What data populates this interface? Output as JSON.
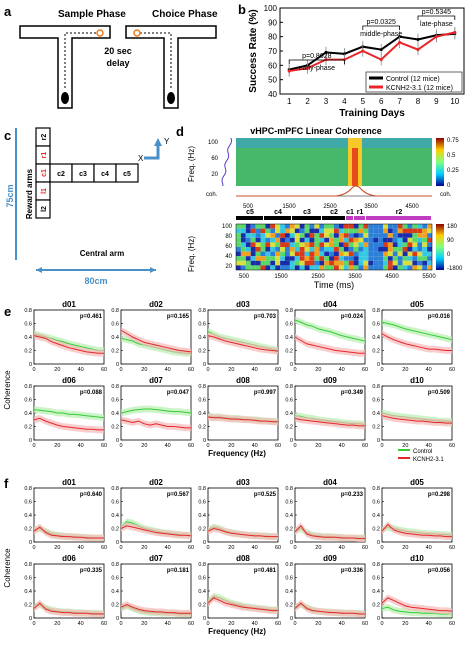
{
  "panel_labels": {
    "a": "a",
    "b": "b",
    "c": "c",
    "d": "d",
    "e": "e",
    "f": "f"
  },
  "panel_a": {
    "sample_phase": "Sample Phase",
    "choice_phase": "Choice Phase",
    "delay": "20 sec\ndelay"
  },
  "panel_c": {
    "reward_arms": "Reward arms",
    "central_arm": "Central arm",
    "dim_vertical": "75cm",
    "dim_horizontal": "80cm",
    "cells_vertical": [
      "r2",
      "r1",
      "c1",
      "l1",
      "l2"
    ],
    "cells_horizontal": [
      "c2",
      "c3",
      "c4",
      "c5"
    ],
    "axis_x": "X",
    "axis_y": "Y"
  },
  "panel_d": {
    "title": "vHPC-mPFC Linear Coherence",
    "ylabel_top": "Freq. (Hz)",
    "ylabel_bottom": "Freq. (Hz)",
    "coh_label": "coh.",
    "xlabel": "Time (ms)",
    "top_yticks": [
      "100",
      "60",
      "20"
    ],
    "colorbar_top": [
      "0.75",
      "0.5",
      "0.25",
      "0"
    ],
    "colorbar_bottom": [
      "180",
      "90",
      "0",
      "-1800"
    ],
    "xticks": [
      "500",
      "1500",
      "2500",
      "3500",
      "4500"
    ],
    "bottom_xticks": [
      "500",
      "1500",
      "2500",
      "3500",
      "4500",
      "5500"
    ],
    "segments": [
      "c5",
      "c4",
      "c3",
      "c2",
      "c1",
      "r1",
      "r2"
    ],
    "bottom_yticks": [
      "100",
      "80",
      "60",
      "40",
      "20"
    ]
  },
  "panel_b": {
    "chart_data": {
      "type": "line",
      "xlabel": "Training Days",
      "ylabel": "Success Rate (%)",
      "x": [
        1,
        2,
        3,
        4,
        5,
        6,
        7,
        8,
        9,
        10
      ],
      "ylim": [
        40,
        100
      ],
      "yticks": [
        40,
        50,
        60,
        70,
        80,
        90,
        100
      ],
      "series": [
        {
          "name": "Control (12 mice)",
          "color": "#000000",
          "values": [
            57,
            60,
            69,
            68,
            73,
            71,
            80,
            78,
            81,
            82
          ]
        },
        {
          "name": "KCNH2-3.1 (12 mice)",
          "color": "#e8262a",
          "values": [
            56,
            58,
            64,
            64,
            70,
            64,
            76,
            71,
            80,
            83
          ]
        }
      ],
      "annotations": [
        {
          "text": "p=0.8628",
          "sub": "early-phase",
          "x_from": 1,
          "x_to": 4
        },
        {
          "text": "p=0.0325",
          "sub": "middle-phase",
          "x_from": 5,
          "x_to": 7
        },
        {
          "text": "p=0.5345",
          "sub": "late-phase",
          "x_from": 8,
          "x_to": 10
        }
      ]
    }
  },
  "coherence_common": {
    "ylabel": "Coherence",
    "xlabel": "Frequency (Hz)",
    "xticks": [
      0,
      20,
      40,
      60
    ],
    "yticks": [
      0,
      0.2,
      0.4,
      0.6,
      0.8
    ],
    "legend": [
      {
        "name": "Control",
        "color": "#33cc33"
      },
      {
        "name": "KCNH2-3.1",
        "color": "#e8262a"
      }
    ]
  },
  "panel_e": {
    "chart_data": [
      {
        "title": "d01",
        "p": "p=0.461",
        "control": [
          0.45,
          0.42,
          0.4,
          0.38,
          0.35,
          0.33,
          0.3,
          0.28,
          0.26,
          0.24,
          0.22,
          0.2,
          0.2
        ],
        "kcnh": [
          0.42,
          0.4,
          0.38,
          0.33,
          0.3,
          0.27,
          0.24,
          0.22,
          0.2,
          0.18,
          0.17,
          0.16,
          0.16
        ]
      },
      {
        "title": "d02",
        "p": "p=0.165",
        "control": [
          0.38,
          0.36,
          0.34,
          0.3,
          0.28,
          0.26,
          0.24,
          0.22,
          0.2,
          0.18,
          0.17,
          0.16,
          0.16
        ],
        "kcnh": [
          0.5,
          0.45,
          0.4,
          0.36,
          0.32,
          0.3,
          0.28,
          0.26,
          0.24,
          0.22,
          0.2,
          0.19,
          0.18
        ]
      },
      {
        "title": "d03",
        "p": "p=0.703",
        "control": [
          0.48,
          0.44,
          0.4,
          0.38,
          0.36,
          0.34,
          0.32,
          0.3,
          0.28,
          0.26,
          0.24,
          0.22,
          0.2
        ],
        "kcnh": [
          0.42,
          0.4,
          0.37,
          0.34,
          0.32,
          0.3,
          0.28,
          0.26,
          0.24,
          0.22,
          0.21,
          0.2,
          0.19
        ]
      },
      {
        "title": "d04",
        "p": "p=0.024",
        "control": [
          0.65,
          0.62,
          0.58,
          0.56,
          0.52,
          0.5,
          0.48,
          0.45,
          0.42,
          0.4,
          0.38,
          0.36,
          0.34
        ],
        "kcnh": [
          0.4,
          0.35,
          0.3,
          0.28,
          0.26,
          0.24,
          0.22,
          0.2,
          0.19,
          0.18,
          0.17,
          0.16,
          0.16
        ]
      },
      {
        "title": "d05",
        "p": "p=0.016",
        "control": [
          0.62,
          0.6,
          0.58,
          0.55,
          0.52,
          0.5,
          0.48,
          0.46,
          0.44,
          0.42,
          0.4,
          0.38,
          0.36
        ],
        "kcnh": [
          0.45,
          0.4,
          0.36,
          0.33,
          0.3,
          0.28,
          0.26,
          0.24,
          0.22,
          0.22,
          0.21,
          0.2,
          0.2
        ]
      },
      {
        "title": "d06",
        "p": "p=0.088",
        "control": [
          0.45,
          0.44,
          0.43,
          0.42,
          0.4,
          0.4,
          0.38,
          0.38,
          0.37,
          0.36,
          0.35,
          0.34,
          0.33
        ],
        "kcnh": [
          0.3,
          0.32,
          0.28,
          0.25,
          0.22,
          0.2,
          0.19,
          0.18,
          0.17,
          0.16,
          0.16,
          0.15,
          0.15
        ]
      },
      {
        "title": "d07",
        "p": "p=0.047",
        "control": [
          0.4,
          0.42,
          0.44,
          0.45,
          0.46,
          0.46,
          0.45,
          0.44,
          0.43,
          0.42,
          0.42,
          0.41,
          0.4
        ],
        "kcnh": [
          0.3,
          0.28,
          0.26,
          0.28,
          0.24,
          0.22,
          0.24,
          0.22,
          0.2,
          0.2,
          0.19,
          0.18,
          0.18
        ]
      },
      {
        "title": "d08",
        "p": "p=0.997",
        "control": [
          0.35,
          0.34,
          0.34,
          0.33,
          0.32,
          0.32,
          0.31,
          0.3,
          0.3,
          0.29,
          0.28,
          0.28,
          0.27
        ],
        "kcnh": [
          0.34,
          0.33,
          0.33,
          0.32,
          0.31,
          0.31,
          0.3,
          0.3,
          0.29,
          0.28,
          0.28,
          0.27,
          0.27
        ]
      },
      {
        "title": "d09",
        "p": "p=0.349",
        "control": [
          0.36,
          0.35,
          0.33,
          0.32,
          0.3,
          0.29,
          0.28,
          0.27,
          0.26,
          0.25,
          0.24,
          0.24,
          0.23
        ],
        "kcnh": [
          0.32,
          0.3,
          0.29,
          0.28,
          0.27,
          0.26,
          0.25,
          0.24,
          0.23,
          0.22,
          0.22,
          0.21,
          0.21
        ]
      },
      {
        "title": "d10",
        "p": "p=0.509",
        "control": [
          0.4,
          0.38,
          0.36,
          0.35,
          0.34,
          0.33,
          0.32,
          0.31,
          0.3,
          0.29,
          0.28,
          0.28,
          0.27
        ],
        "kcnh": [
          0.36,
          0.34,
          0.32,
          0.31,
          0.3,
          0.29,
          0.28,
          0.28,
          0.27,
          0.26,
          0.26,
          0.25,
          0.25
        ]
      }
    ]
  },
  "panel_f": {
    "chart_data": [
      {
        "title": "d01",
        "p": "p=0.640",
        "control": [
          0.18,
          0.2,
          0.16,
          0.12,
          0.1,
          0.09,
          0.08,
          0.08,
          0.07,
          0.07,
          0.06,
          0.06,
          0.06
        ],
        "kcnh": [
          0.16,
          0.22,
          0.14,
          0.1,
          0.09,
          0.08,
          0.08,
          0.07,
          0.07,
          0.06,
          0.06,
          0.06,
          0.06
        ]
      },
      {
        "title": "d02",
        "p": "p=0.567",
        "control": [
          0.22,
          0.3,
          0.28,
          0.24,
          0.2,
          0.18,
          0.16,
          0.14,
          0.13,
          0.12,
          0.11,
          0.1,
          0.1
        ],
        "kcnh": [
          0.2,
          0.24,
          0.22,
          0.2,
          0.18,
          0.16,
          0.14,
          0.13,
          0.12,
          0.11,
          0.1,
          0.1,
          0.09
        ]
      },
      {
        "title": "d03",
        "p": "p=0.525",
        "control": [
          0.18,
          0.22,
          0.2,
          0.16,
          0.14,
          0.12,
          0.11,
          0.1,
          0.1,
          0.09,
          0.09,
          0.08,
          0.08
        ],
        "kcnh": [
          0.16,
          0.2,
          0.18,
          0.15,
          0.13,
          0.12,
          0.11,
          0.1,
          0.09,
          0.09,
          0.08,
          0.08,
          0.08
        ]
      },
      {
        "title": "d04",
        "p": "p=0.233",
        "control": [
          0.16,
          0.2,
          0.14,
          0.1,
          0.09,
          0.08,
          0.08,
          0.07,
          0.07,
          0.06,
          0.06,
          0.06,
          0.06
        ],
        "kcnh": [
          0.15,
          0.24,
          0.12,
          0.09,
          0.08,
          0.07,
          0.07,
          0.07,
          0.06,
          0.06,
          0.06,
          0.05,
          0.05
        ]
      },
      {
        "title": "d05",
        "p": "p=0.298",
        "control": [
          0.18,
          0.22,
          0.2,
          0.18,
          0.16,
          0.15,
          0.14,
          0.13,
          0.12,
          0.12,
          0.11,
          0.11,
          0.1
        ],
        "kcnh": [
          0.16,
          0.26,
          0.18,
          0.15,
          0.13,
          0.12,
          0.11,
          0.1,
          0.1,
          0.09,
          0.09,
          0.08,
          0.08
        ]
      },
      {
        "title": "d06",
        "p": "p=0.335",
        "control": [
          0.16,
          0.2,
          0.15,
          0.12,
          0.1,
          0.09,
          0.09,
          0.08,
          0.08,
          0.07,
          0.07,
          0.07,
          0.06
        ],
        "kcnh": [
          0.14,
          0.22,
          0.13,
          0.1,
          0.09,
          0.08,
          0.08,
          0.07,
          0.07,
          0.07,
          0.06,
          0.06,
          0.06
        ]
      },
      {
        "title": "d07",
        "p": "p=0.181",
        "control": [
          0.14,
          0.18,
          0.14,
          0.11,
          0.09,
          0.08,
          0.08,
          0.07,
          0.07,
          0.07,
          0.06,
          0.06,
          0.06
        ],
        "kcnh": [
          0.16,
          0.2,
          0.16,
          0.13,
          0.11,
          0.1,
          0.09,
          0.09,
          0.08,
          0.08,
          0.07,
          0.07,
          0.07
        ]
      },
      {
        "title": "d08",
        "p": "p=0.481",
        "control": [
          0.24,
          0.32,
          0.3,
          0.26,
          0.22,
          0.2,
          0.18,
          0.16,
          0.15,
          0.14,
          0.13,
          0.12,
          0.12
        ],
        "kcnh": [
          0.22,
          0.3,
          0.26,
          0.22,
          0.2,
          0.18,
          0.16,
          0.15,
          0.14,
          0.13,
          0.12,
          0.11,
          0.11
        ]
      },
      {
        "title": "d09",
        "p": "p=0.336",
        "control": [
          0.16,
          0.2,
          0.16,
          0.12,
          0.1,
          0.09,
          0.09,
          0.08,
          0.08,
          0.07,
          0.07,
          0.07,
          0.06
        ],
        "kcnh": [
          0.14,
          0.22,
          0.14,
          0.11,
          0.1,
          0.09,
          0.08,
          0.08,
          0.07,
          0.07,
          0.07,
          0.06,
          0.06
        ]
      },
      {
        "title": "d10",
        "p": "p=0.056",
        "control": [
          0.14,
          0.16,
          0.12,
          0.1,
          0.09,
          0.08,
          0.08,
          0.07,
          0.07,
          0.07,
          0.06,
          0.06,
          0.06
        ],
        "kcnh": [
          0.22,
          0.3,
          0.26,
          0.22,
          0.18,
          0.16,
          0.15,
          0.14,
          0.13,
          0.12,
          0.11,
          0.11,
          0.1
        ]
      }
    ]
  }
}
